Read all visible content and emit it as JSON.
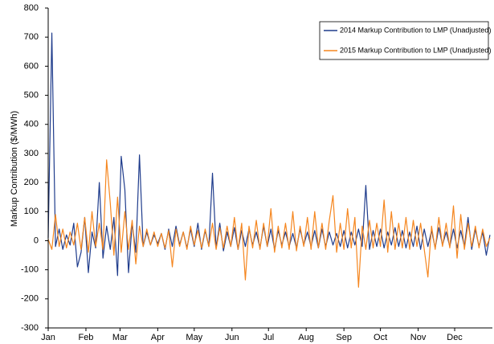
{
  "chart_data": {
    "type": "line",
    "ylabel": "Markup Contribution  ($/MWh)",
    "x": [
      1,
      4,
      7,
      10,
      13,
      16,
      19,
      22,
      25,
      28,
      31,
      34,
      37,
      40,
      43,
      46,
      49,
      52,
      55,
      58,
      61,
      64,
      67,
      70,
      73,
      76,
      79,
      82,
      85,
      88,
      91,
      94,
      97,
      100,
      103,
      106,
      109,
      112,
      115,
      118,
      121,
      124,
      127,
      130,
      133,
      136,
      139,
      142,
      145,
      148,
      151,
      154,
      157,
      160,
      163,
      166,
      169,
      172,
      175,
      178,
      181,
      184,
      187,
      190,
      193,
      196,
      199,
      202,
      205,
      208,
      211,
      214,
      217,
      220,
      223,
      226,
      229,
      232,
      235,
      238,
      241,
      244,
      247,
      250,
      253,
      256,
      259,
      262,
      265,
      268,
      271,
      274,
      277,
      280,
      283,
      286,
      289,
      292,
      295,
      298,
      301,
      304,
      307,
      310,
      313,
      316,
      319,
      322,
      325,
      328,
      331,
      334,
      337,
      340,
      343,
      346,
      349,
      352,
      355,
      358,
      361,
      364
    ],
    "xlim": [
      1,
      366
    ],
    "xticks": [
      {
        "value": 1,
        "label": "Jan"
      },
      {
        "value": 32,
        "label": "Feb"
      },
      {
        "value": 60,
        "label": "Mar"
      },
      {
        "value": 91,
        "label": "Apr"
      },
      {
        "value": 121,
        "label": "May"
      },
      {
        "value": 152,
        "label": "Jun"
      },
      {
        "value": 182,
        "label": "Jul"
      },
      {
        "value": 213,
        "label": "Aug"
      },
      {
        "value": 244,
        "label": "Sep"
      },
      {
        "value": 274,
        "label": "Oct"
      },
      {
        "value": 305,
        "label": "Nov"
      },
      {
        "value": 335,
        "label": "Dec"
      }
    ],
    "ylim": [
      -300,
      800
    ],
    "yticks": [
      -300,
      -200,
      -100,
      0,
      100,
      200,
      300,
      400,
      500,
      600,
      700,
      800
    ],
    "grid": false,
    "legend": "top-right",
    "series": [
      {
        "name": "2014 Markup Contribution to LMP (Unadjusted)",
        "color": "#1f3c8c",
        "values": [
          10,
          714,
          -20,
          40,
          -30,
          20,
          -15,
          60,
          -90,
          -40,
          80,
          -110,
          30,
          -25,
          200,
          -60,
          50,
          -30,
          80,
          -120,
          290,
          175,
          -110,
          60,
          -40,
          295,
          -20,
          30,
          -15,
          20,
          -10,
          25,
          -30,
          40,
          -20,
          50,
          -15,
          30,
          -25,
          40,
          -20,
          60,
          -30,
          35,
          -20,
          232,
          -25,
          60,
          -35,
          30,
          -20,
          45,
          -30,
          35,
          -20,
          40,
          -15,
          30,
          -25,
          50,
          -20,
          40,
          -30,
          35,
          -15,
          30,
          -20,
          25,
          -25,
          40,
          -15,
          30,
          -20,
          35,
          -25,
          40,
          -20,
          30,
          -15,
          25,
          -20,
          35,
          -25,
          30,
          -15,
          40,
          -20,
          190,
          -30,
          35,
          -20,
          40,
          -25,
          30,
          -15,
          45,
          -20,
          35,
          -25,
          30,
          -20,
          50,
          -30,
          40,
          -20,
          35,
          -25,
          45,
          -15,
          30,
          -20,
          40,
          -25,
          35,
          -20,
          80,
          -30,
          40,
          -20,
          30,
          -50,
          20
        ]
      },
      {
        "name": "2015 Markup Contribution to LMP (Unadjusted)",
        "color": "#f5861f",
        "values": [
          5,
          -30,
          90,
          -20,
          40,
          -25,
          30,
          -15,
          60,
          -30,
          80,
          -40,
          100,
          -20,
          60,
          -30,
          278,
          130,
          -50,
          150,
          -40,
          100,
          -30,
          70,
          -80,
          50,
          -20,
          40,
          -15,
          30,
          -20,
          25,
          -25,
          35,
          -90,
          40,
          -20,
          30,
          -30,
          50,
          -15,
          35,
          -25,
          40,
          -20,
          60,
          -30,
          45,
          -25,
          50,
          -20,
          80,
          -30,
          60,
          -135,
          50,
          -25,
          70,
          -30,
          60,
          -20,
          110,
          -40,
          50,
          -25,
          60,
          -30,
          100,
          -35,
          50,
          -20,
          80,
          -30,
          100,
          -25,
          60,
          -30,
          70,
          155,
          -40,
          60,
          -30,
          110,
          -25,
          80,
          -160,
          50,
          -30,
          70,
          -25,
          60,
          -20,
          140,
          -40,
          100,
          -30,
          60,
          -25,
          80,
          -30,
          70,
          -20,
          60,
          -30,
          -125,
          50,
          -30,
          80,
          -20,
          60,
          -25,
          120,
          -60,
          90,
          -30,
          60,
          -20,
          50,
          -25,
          40,
          -20,
          10
        ]
      }
    ]
  }
}
